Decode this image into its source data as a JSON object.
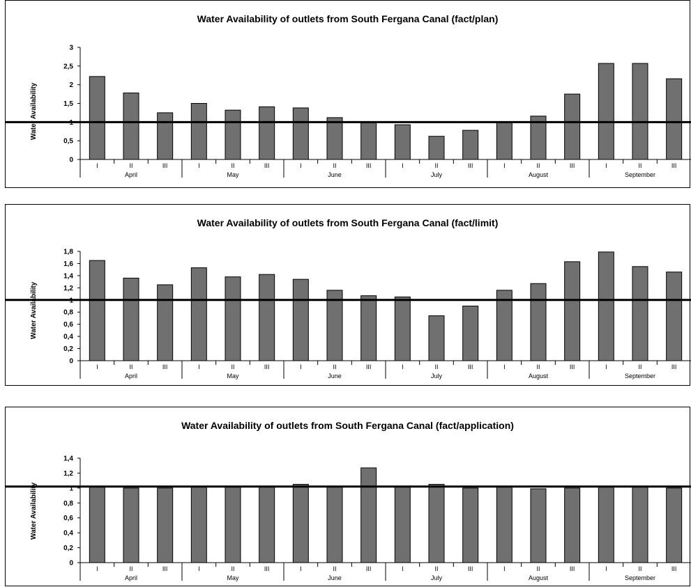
{
  "chart_data": [
    {
      "type": "bar",
      "title": "Water Availability of outlets from South Fergana Canal (fact/plan)",
      "ylabel": "Water Availability",
      "xlabel": "",
      "ylim": [
        0,
        3
      ],
      "yticks": [
        "0",
        "0,5",
        "1",
        "1,5",
        "2",
        "2,5",
        "3"
      ],
      "ytick_values": [
        0,
        0.5,
        1,
        1.5,
        2,
        2.5,
        3
      ],
      "reference_line": 1,
      "grid": false,
      "legend": "none",
      "months": [
        "April",
        "May",
        "June",
        "July",
        "August",
        "September"
      ],
      "decades": [
        "I",
        "II",
        "III"
      ],
      "categories": [
        "April I",
        "April II",
        "April III",
        "May I",
        "May II",
        "May III",
        "June I",
        "June II",
        "June III",
        "July I",
        "July II",
        "July III",
        "August I",
        "August II",
        "August III",
        "September I",
        "September II",
        "September III"
      ],
      "values": [
        2.22,
        1.78,
        1.25,
        1.5,
        1.32,
        1.41,
        1.38,
        1.12,
        0.98,
        0.93,
        0.62,
        0.78,
        1.0,
        1.16,
        1.75,
        2.57,
        2.57,
        2.16
      ]
    },
    {
      "type": "bar",
      "title": "Water Availability of outlets from South Fergana Canal (fact/limit)",
      "ylabel": "Water Availability",
      "xlabel": "",
      "ylim": [
        0,
        1.8
      ],
      "yticks": [
        "0",
        "0,2",
        "0,4",
        "0,6",
        "0,8",
        "1",
        "1,2",
        "1,4",
        "1,6",
        "1,8"
      ],
      "ytick_values": [
        0,
        0.2,
        0.4,
        0.6,
        0.8,
        1,
        1.2,
        1.4,
        1.6,
        1.8
      ],
      "reference_line": 1,
      "grid": false,
      "legend": "none",
      "months": [
        "April",
        "May",
        "June",
        "July",
        "August",
        "September"
      ],
      "decades": [
        "I",
        "II",
        "III"
      ],
      "categories": [
        "April I",
        "April II",
        "April III",
        "May I",
        "May II",
        "May III",
        "June I",
        "June II",
        "June III",
        "July I",
        "July II",
        "July III",
        "August I",
        "August II",
        "August III",
        "September I",
        "September II",
        "September III"
      ],
      "values": [
        1.65,
        1.36,
        1.25,
        1.53,
        1.38,
        1.42,
        1.34,
        1.16,
        1.07,
        1.05,
        0.74,
        0.9,
        1.16,
        1.27,
        1.63,
        1.79,
        1.55,
        1.46
      ]
    },
    {
      "type": "bar",
      "title": "Water Availability of outlets from South Fergana Canal (fact/application)",
      "ylabel": "Water Availability",
      "xlabel": "",
      "ylim": [
        0,
        1.4
      ],
      "yticks": [
        "0",
        "0,2",
        "0,4",
        "0,6",
        "0,8",
        "1",
        "1,2",
        "1,4"
      ],
      "ytick_values": [
        0,
        0.2,
        0.4,
        0.6,
        0.8,
        1,
        1.2,
        1.4
      ],
      "reference_line": 1.02,
      "grid": false,
      "legend": "none",
      "months": [
        "April",
        "May",
        "June",
        "July",
        "August",
        "September"
      ],
      "decades": [
        "I",
        "II",
        "III"
      ],
      "categories": [
        "April I",
        "April II",
        "April III",
        "May I",
        "May II",
        "May III",
        "June I",
        "June II",
        "June III",
        "July I",
        "July II",
        "July III",
        "August I",
        "August II",
        "August III",
        "September I",
        "September II",
        "September III"
      ],
      "values": [
        1.02,
        1.0,
        1.0,
        1.02,
        1.02,
        1.02,
        1.05,
        1.02,
        1.27,
        1.02,
        1.05,
        1.0,
        1.02,
        0.99,
        1.0,
        1.02,
        1.02,
        1.0
      ]
    }
  ]
}
